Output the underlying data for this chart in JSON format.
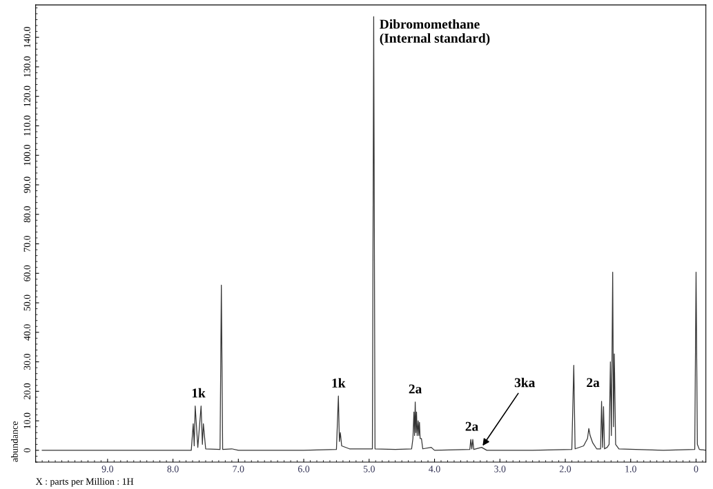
{
  "chart_data": {
    "type": "line",
    "xlabel": "X : parts per Million : 1H",
    "ylabel": "abundance",
    "xlim": [
      10.1,
      -0.15
    ],
    "ylim": [
      -4,
      151
    ],
    "xticks": [
      {
        "value": 9,
        "label": "9.0"
      },
      {
        "value": 8,
        "label": "8.0"
      },
      {
        "value": 7,
        "label": "7.0"
      },
      {
        "value": 6,
        "label": "6.0"
      },
      {
        "value": 5,
        "label": "5.0"
      },
      {
        "value": 4,
        "label": "4.0"
      },
      {
        "value": 3,
        "label": "3.0"
      },
      {
        "value": 2,
        "label": "2.0"
      },
      {
        "value": 1,
        "label": "1.0"
      },
      0
    ],
    "yticks": [
      0,
      {
        "value": 10,
        "label": "10.0"
      },
      {
        "value": 20,
        "label": "20.0"
      },
      {
        "value": 30,
        "label": "30.0"
      },
      {
        "value": 40,
        "label": "40.0"
      },
      {
        "value": 50,
        "label": "50.0"
      },
      {
        "value": 60,
        "label": "60.0"
      },
      {
        "value": 70,
        "label": "70.0"
      },
      {
        "value": 80,
        "label": "80.0"
      },
      {
        "value": 90,
        "label": "90.0"
      },
      {
        "value": 100,
        "label": "100.0"
      },
      {
        "value": 110,
        "label": "110.0"
      },
      {
        "value": 120,
        "label": "120.0"
      },
      {
        "value": 130,
        "label": "130.0"
      },
      {
        "value": 140,
        "label": "140.0"
      }
    ],
    "grid": false,
    "legend": false,
    "marker": "none",
    "line_style": "solid",
    "series": [
      {
        "color": "#333333",
        "x": [
          10.0,
          9.0,
          8.0,
          7.72,
          7.69,
          7.675,
          7.66,
          7.62,
          7.57,
          7.55,
          7.535,
          7.5,
          7.28,
          7.26,
          7.24,
          7.1,
          7.0,
          6.0,
          5.5,
          5.47,
          5.455,
          5.44,
          5.42,
          5.3,
          4.95,
          4.93,
          4.91,
          4.6,
          4.35,
          4.33,
          4.315,
          4.305,
          4.295,
          4.285,
          4.275,
          4.265,
          4.25,
          4.24,
          4.23,
          4.22,
          4.2,
          4.18,
          4.05,
          4.0,
          3.46,
          3.445,
          3.43,
          3.415,
          3.4,
          3.28,
          3.2,
          2.5,
          1.9,
          1.87,
          1.85,
          1.72,
          1.66,
          1.64,
          1.62,
          1.58,
          1.52,
          1.46,
          1.445,
          1.43,
          1.415,
          1.4,
          1.36,
          1.33,
          1.31,
          1.295,
          1.275,
          1.262,
          1.25,
          1.23,
          1.18,
          0.5,
          0.02,
          0.0,
          -0.02,
          -0.05,
          -0.15
        ],
        "values": [
          0,
          0,
          0,
          0,
          9,
          1.5,
          15,
          1,
          15,
          2,
          9,
          0.5,
          0.3,
          56,
          0.3,
          0.5,
          0,
          0,
          0.3,
          18.4,
          3,
          6,
          1.5,
          0.5,
          0.5,
          147,
          0.5,
          0.3,
          0.5,
          4,
          13,
          5,
          16.4,
          6,
          13,
          5,
          10,
          5,
          9.5,
          4,
          4,
          0.5,
          1,
          0,
          0.3,
          3.7,
          0.5,
          3.7,
          0.3,
          1,
          0,
          0,
          0.3,
          28.8,
          0.5,
          1.5,
          4,
          7.4,
          5,
          2.5,
          0.5,
          0.5,
          16.6,
          1,
          14.8,
          0.5,
          1,
          2,
          30,
          5,
          60.4,
          8,
          32.7,
          2,
          0.5,
          0,
          0.3,
          60.4,
          2,
          0.3,
          0
        ]
      }
    ],
    "annotations": [
      {
        "text": "Dibromomethane\n(Internal standard)",
        "x": 4.93,
        "y": 147
      },
      {
        "text": "1k",
        "x": 7.61,
        "y": 15
      },
      {
        "text": "1k",
        "x": 5.47,
        "y": 18.4
      },
      {
        "text": "2a",
        "x": 4.295,
        "y": 16.4
      },
      {
        "text": "2a",
        "x": 3.43,
        "y": 3.7
      },
      {
        "text": "3ka",
        "x": 3.28,
        "y": 1
      },
      {
        "text": "2a",
        "x": 1.43,
        "y": 16.6
      }
    ]
  }
}
